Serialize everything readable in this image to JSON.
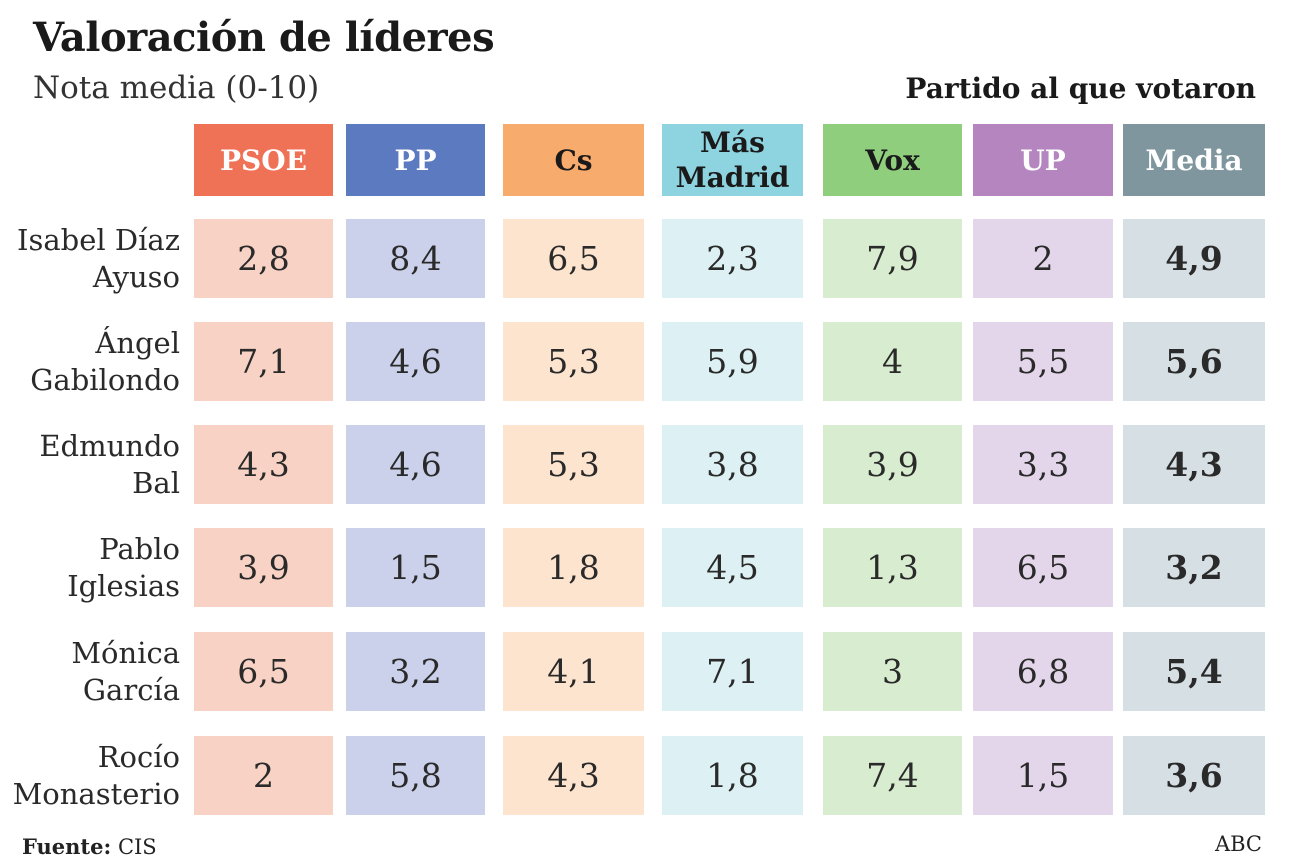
{
  "header": {
    "title": "Valoración de líderes",
    "subtitle": "Nota media (0-10)",
    "legend_note": "Partido al que votaron"
  },
  "footer": {
    "source_label": "Fuente:",
    "source_value": "CIS",
    "brand": "ABC"
  },
  "colors": {
    "PSOE": {
      "header": "#ef7257",
      "cell": "#f8d3c5",
      "text": "#ffffff"
    },
    "PP": {
      "header": "#5b7abf",
      "cell": "#cbd1ea",
      "text": "#ffffff"
    },
    "Cs": {
      "header": "#f7ac6d",
      "cell": "#fde4ce",
      "text": "#1a1a1a"
    },
    "Más Madrid": {
      "header": "#8dd3e0",
      "cell": "#ddf0f3",
      "text": "#1a1a1a"
    },
    "Vox": {
      "header": "#8fce7d",
      "cell": "#d8edcf",
      "text": "#1a1a1a"
    },
    "UP": {
      "header": "#b585bf",
      "cell": "#e4d6ea",
      "text": "#ffffff"
    },
    "Media": {
      "header": "#7f969e",
      "cell": "#d6dfe3",
      "text": "#ffffff"
    }
  },
  "chart_data": {
    "type": "table",
    "title": "Valoración de líderes",
    "subtitle": "Nota media (0-10)",
    "column_group_label": "Partido al que votaron",
    "columns": [
      "PSOE",
      "PP",
      "Cs",
      "Más\nMadrid",
      "Vox",
      "UP",
      "Media"
    ],
    "column_keys": [
      "PSOE",
      "PP",
      "Cs",
      "Más Madrid",
      "Vox",
      "UP",
      "Media"
    ],
    "rows": [
      {
        "label": "Isabel Díaz\nAyuso",
        "values": [
          "2,8",
          "8,4",
          "6,5",
          "2,3",
          "7,9",
          "2",
          "4,9"
        ]
      },
      {
        "label": "Ángel\nGabilondo",
        "values": [
          "7,1",
          "4,6",
          "5,3",
          "5,9",
          "4",
          "5,5",
          "5,6"
        ]
      },
      {
        "label": "Edmundo\nBal",
        "values": [
          "4,3",
          "4,6",
          "5,3",
          "3,8",
          "3,9",
          "3,3",
          "4,3"
        ]
      },
      {
        "label": "Pablo\nIglesias",
        "values": [
          "3,9",
          "1,5",
          "1,8",
          "4,5",
          "1,3",
          "6,5",
          "3,2"
        ]
      },
      {
        "label": "Mónica\nGarcía",
        "values": [
          "6,5",
          "3,2",
          "4,1",
          "7,1",
          "3",
          "6,8",
          "5,4"
        ]
      },
      {
        "label": "Rocío\nMonasterio",
        "values": [
          "2",
          "5,8",
          "4,3",
          "1,8",
          "7,4",
          "1,5",
          "3,6"
        ]
      }
    ]
  }
}
